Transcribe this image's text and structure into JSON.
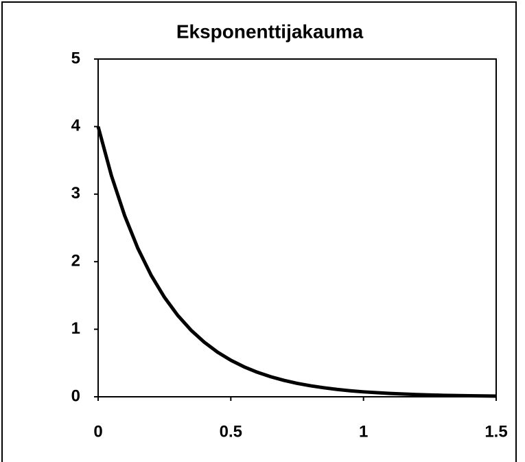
{
  "chart_data": {
    "type": "line",
    "title": "Eksponenttijakauma",
    "x": [
      0,
      0.05,
      0.1,
      0.15,
      0.2,
      0.25,
      0.3,
      0.35,
      0.4,
      0.45,
      0.5,
      0.55,
      0.6,
      0.65,
      0.7,
      0.75,
      0.8,
      0.85,
      0.9,
      0.95,
      1.0,
      1.1,
      1.2,
      1.3,
      1.4,
      1.5
    ],
    "series": [
      {
        "color": "#000000",
        "values": [
          4,
          3.275,
          2.681,
          2.195,
          1.797,
          1.472,
          1.205,
          0.986,
          0.808,
          0.661,
          0.541,
          0.443,
          0.363,
          0.297,
          0.243,
          0.199,
          0.163,
          0.134,
          0.109,
          0.089,
          0.073,
          0.049,
          0.033,
          0.022,
          0.015,
          0.01
        ]
      }
    ],
    "xlim": [
      0,
      1.5
    ],
    "xticks": [
      0,
      0.5,
      1,
      1.5
    ],
    "ylim": [
      0,
      5
    ],
    "yticks": [
      0,
      1,
      2,
      3,
      4,
      5
    ],
    "grid": false
  }
}
